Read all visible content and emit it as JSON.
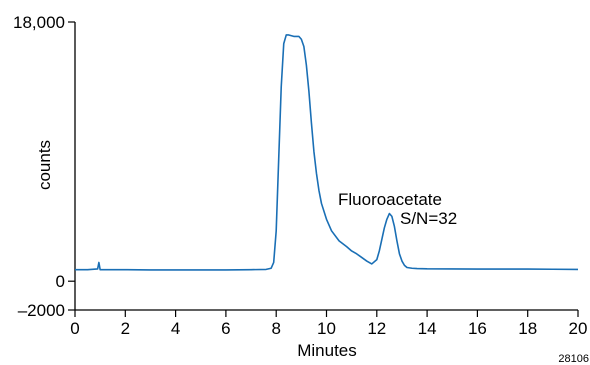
{
  "chart_data": {
    "type": "line",
    "title": "",
    "xlabel": "Minutes",
    "ylabel": "counts",
    "xlim": [
      0,
      20
    ],
    "ylim": [
      -2000,
      18000
    ],
    "x_ticks": [
      0,
      2,
      4,
      6,
      8,
      10,
      12,
      14,
      16,
      18,
      20
    ],
    "x_tick_labels": [
      "0",
      "2",
      "4",
      "6",
      "8",
      "10",
      "12",
      "14",
      "16",
      "18",
      "20"
    ],
    "y_ticks": [
      -2000,
      0,
      18000
    ],
    "y_tick_labels": [
      "–2000",
      "0",
      "18,000"
    ],
    "grid": false,
    "line_color": "#1a6fb5",
    "series": [
      {
        "x": [
          0,
          0.5,
          0.9,
          0.95,
          1.0,
          1.05,
          1.1,
          2,
          3,
          4,
          5,
          6,
          7,
          7.6,
          7.8,
          7.9,
          8.0,
          8.1,
          8.2,
          8.3,
          8.4,
          8.5,
          8.7,
          8.9,
          9.0,
          9.1,
          9.2,
          9.3,
          9.4,
          9.5,
          9.6,
          9.7,
          9.8,
          10.0,
          10.2,
          10.5,
          10.8,
          11.0,
          11.2,
          11.4,
          11.6,
          11.8,
          12.0,
          12.1,
          12.2,
          12.3,
          12.4,
          12.5,
          12.6,
          12.7,
          12.8,
          12.9,
          13.0,
          13.1,
          13.2,
          13.4,
          13.6,
          14,
          15,
          16,
          17,
          18,
          19,
          20
        ],
        "y": [
          800,
          800,
          850,
          1300,
          800,
          800,
          800,
          800,
          780,
          780,
          780,
          780,
          800,
          820,
          900,
          1300,
          3500,
          8500,
          13500,
          16500,
          17100,
          17100,
          17000,
          17000,
          16800,
          16300,
          15000,
          13200,
          11000,
          9000,
          7500,
          6300,
          5400,
          4300,
          3500,
          2800,
          2400,
          2100,
          1900,
          1650,
          1400,
          1200,
          1500,
          2100,
          2900,
          3700,
          4300,
          4700,
          4500,
          3800,
          2800,
          1900,
          1400,
          1100,
          950,
          900,
          880,
          860,
          850,
          840,
          840,
          840,
          830,
          820
        ]
      }
    ],
    "annotations": [
      "Fluoroacetate",
      "S/N=32"
    ],
    "figure_id": "28106"
  }
}
